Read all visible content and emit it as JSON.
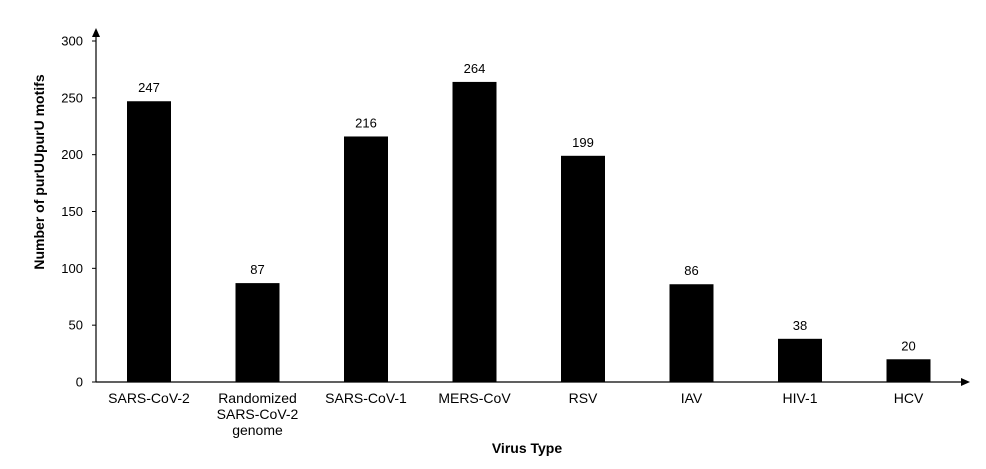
{
  "chart_data": {
    "type": "bar",
    "title": "",
    "xlabel": "Virus Type",
    "ylabel": "Number of purUUpurU motifs",
    "ylim": [
      0,
      300
    ],
    "yticks": [
      0,
      50,
      100,
      150,
      200,
      250,
      300
    ],
    "categories": [
      [
        "SARS-CoV-2"
      ],
      [
        "Randomized",
        "SARS-CoV-2",
        "genome"
      ],
      [
        "SARS-CoV-1"
      ],
      [
        "MERS-CoV"
      ],
      [
        "RSV"
      ],
      [
        "IAV"
      ],
      [
        "HIV-1"
      ],
      [
        "HCV"
      ]
    ],
    "values": [
      247,
      87,
      216,
      264,
      199,
      86,
      38,
      20
    ],
    "bar_color": "#000000",
    "grid": false,
    "legend": "none"
  }
}
